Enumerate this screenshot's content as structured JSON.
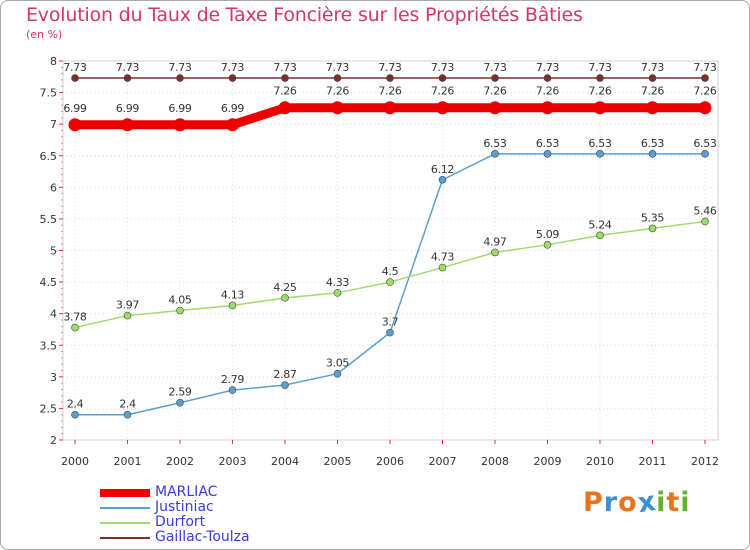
{
  "header": {
    "title": "Evolution du Taux de Taxe Foncière sur les Propriétés Bâties",
    "subtitle": "(en %)"
  },
  "brand": {
    "text": "Proxiti",
    "letters": [
      "P",
      "r",
      "o",
      "x",
      "i",
      "t",
      "i"
    ],
    "colors": [
      "#e8731a",
      "#3b8fd4",
      "#e8731a",
      "#3b8fd4",
      "#5fb32e",
      "#e8731a",
      "#5fb32e"
    ]
  },
  "chart_data": {
    "type": "line",
    "title": "Evolution du Taux de Taxe Foncière sur les Propriétés Bâties",
    "ylabel": "(en %)",
    "xlabel": "",
    "ylim": [
      2,
      8
    ],
    "yticks": [
      "2",
      "2.5",
      "3",
      "3.5",
      "4",
      "4.5",
      "5",
      "5.5",
      "6",
      "6.5",
      "7",
      "7.5",
      "8"
    ],
    "categories": [
      "2000",
      "2001",
      "2002",
      "2003",
      "2004",
      "2005",
      "2006",
      "2007",
      "2008",
      "2009",
      "2010",
      "2011",
      "2012"
    ],
    "legend_position": "bottom-left",
    "series": [
      {
        "name": "Gaillac-Toulza",
        "color": "#7a2e2e",
        "values": [
          7.73,
          7.73,
          7.73,
          7.73,
          7.73,
          7.73,
          7.73,
          7.73,
          7.73,
          7.73,
          7.73,
          7.73,
          7.73
        ],
        "labels": [
          "7.73",
          "7.73",
          "7.73",
          "7.73",
          "7.73",
          "7.73",
          "7.73",
          "7.73",
          "7.73",
          "7.73",
          "7.73",
          "7.73",
          "7.73"
        ]
      },
      {
        "name": "MARLIAC",
        "color": "#ee0000",
        "values": [
          6.99,
          6.99,
          6.99,
          6.99,
          7.26,
          7.26,
          7.26,
          7.26,
          7.26,
          7.26,
          7.26,
          7.26,
          7.26
        ],
        "labels": [
          "6.99",
          "6.99",
          "6.99",
          "6.99",
          "7.26",
          "7.26",
          "7.26",
          "7.26",
          "7.26",
          "7.26",
          "7.26",
          "7.26",
          "7.26"
        ]
      },
      {
        "name": "Justiniac",
        "color": "#5a9fd4",
        "values": [
          2.4,
          2.4,
          2.59,
          2.79,
          2.87,
          3.05,
          3.7,
          6.12,
          6.53,
          6.53,
          6.53,
          6.53,
          6.53
        ],
        "labels": [
          "2.4",
          "2.4",
          "2.59",
          "2.79",
          "2.87",
          "3.05",
          "3.7",
          "6.12",
          "6.53",
          "6.53",
          "6.53",
          "6.53",
          "6.53"
        ]
      },
      {
        "name": "Durfort",
        "color": "#9edc6a",
        "values": [
          3.78,
          3.97,
          4.05,
          4.13,
          4.25,
          4.33,
          4.5,
          4.73,
          4.97,
          5.09,
          5.24,
          5.35,
          5.46
        ],
        "labels": [
          "3.78",
          "3.97",
          "4.05",
          "4.13",
          "4.25",
          "4.33",
          "4.5",
          "4.73",
          "4.97",
          "5.09",
          "5.24",
          "5.35",
          "5.46"
        ]
      }
    ],
    "legend": [
      "MARLIAC",
      "Justiniac",
      "Durfort",
      "Gaillac-Toulza"
    ]
  }
}
